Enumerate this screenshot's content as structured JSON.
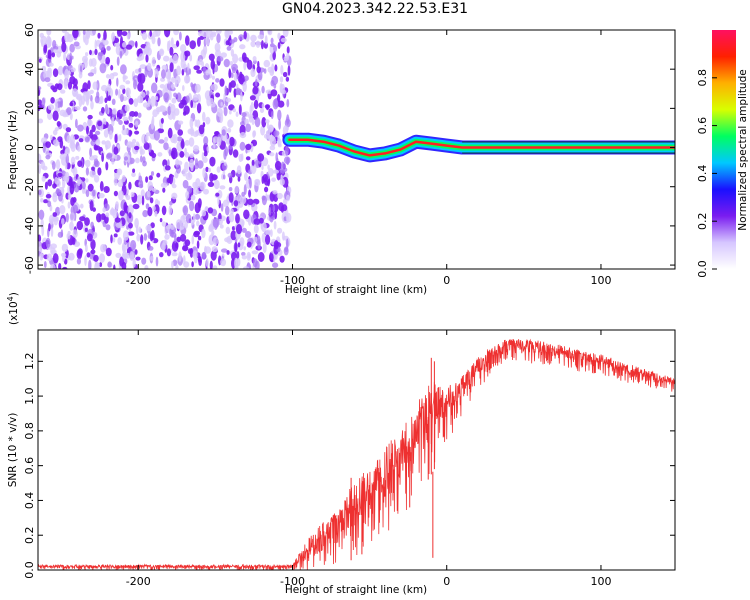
{
  "title": "GN04.2023.342.22.53.E31",
  "chart_data": [
    {
      "type": "heatmap",
      "xlabel": "Height of straight line (km)",
      "ylabel": "Frequency (Hz)",
      "xlim": [
        -265,
        148
      ],
      "ylim": [
        -62,
        60
      ],
      "xticks": [
        -200,
        -100,
        0,
        100
      ],
      "yticks": [
        -60,
        -40,
        -20,
        0,
        20,
        40,
        60
      ],
      "colorbar": {
        "label": "Normalized spectral amplitude",
        "range": [
          0,
          1
        ],
        "ticks": [
          "0.0",
          "0.2",
          "0.4",
          "0.6",
          "0.8"
        ],
        "colors": [
          "#ffffff",
          "#d6c6ff",
          "#7a1cf0",
          "#1a10ff",
          "#00c8ff",
          "#00ff60",
          "#d8ff00",
          "#ffb000",
          "#ff2000",
          "#ff1060"
        ]
      },
      "noise_region_x": [
        -265,
        -102
      ],
      "signal_track": [
        {
          "x": -102,
          "y": 4
        },
        {
          "x": -90,
          "y": 4
        },
        {
          "x": -80,
          "y": 3
        },
        {
          "x": -70,
          "y": 1
        },
        {
          "x": -60,
          "y": -2
        },
        {
          "x": -50,
          "y": -4
        },
        {
          "x": -40,
          "y": -3
        },
        {
          "x": -30,
          "y": -1
        },
        {
          "x": -20,
          "y": 3
        },
        {
          "x": -10,
          "y": 2
        },
        {
          "x": 0,
          "y": 1
        },
        {
          "x": 10,
          "y": 0
        },
        {
          "x": 148,
          "y": 0
        }
      ]
    },
    {
      "type": "line",
      "xlabel": "Height of straight line (km)",
      "ylabel": "SNR (10 * v/v)",
      "yscale_label": "(x10",
      "yscale_exp": "4",
      "yscale_close": ")",
      "xlim": [
        -265,
        148
      ],
      "ylim": [
        0,
        1.38
      ],
      "xticks": [
        -200,
        -100,
        0,
        100
      ],
      "yticks": [
        "0.0",
        "0.2",
        "0.4",
        "0.6",
        "0.8",
        "1.0",
        "1.2"
      ],
      "color": "#ee3030",
      "envelope": [
        {
          "x": -265,
          "lo": 0.0,
          "hi": 0.03
        },
        {
          "x": -100,
          "lo": 0.0,
          "hi": 0.03
        },
        {
          "x": -90,
          "lo": 0.0,
          "hi": 0.18
        },
        {
          "x": -80,
          "lo": 0.02,
          "hi": 0.28
        },
        {
          "x": -70,
          "lo": 0.04,
          "hi": 0.35
        },
        {
          "x": -60,
          "lo": 0.06,
          "hi": 0.52
        },
        {
          "x": -50,
          "lo": 0.12,
          "hi": 0.6
        },
        {
          "x": -40,
          "lo": 0.2,
          "hi": 0.7
        },
        {
          "x": -30,
          "lo": 0.3,
          "hi": 0.82
        },
        {
          "x": -20,
          "lo": 0.4,
          "hi": 0.95
        },
        {
          "x": -10,
          "lo": 0.55,
          "hi": 1.1
        },
        {
          "x": 0,
          "lo": 0.7,
          "hi": 1.05
        },
        {
          "x": 10,
          "lo": 0.88,
          "hi": 1.12
        },
        {
          "x": 20,
          "lo": 1.02,
          "hi": 1.22
        },
        {
          "x": 30,
          "lo": 1.15,
          "hi": 1.3
        },
        {
          "x": 40,
          "lo": 1.2,
          "hi": 1.33
        },
        {
          "x": 60,
          "lo": 1.18,
          "hi": 1.32
        },
        {
          "x": 80,
          "lo": 1.15,
          "hi": 1.28
        },
        {
          "x": 100,
          "lo": 1.12,
          "hi": 1.24
        },
        {
          "x": 120,
          "lo": 1.07,
          "hi": 1.18
        },
        {
          "x": 148,
          "lo": 1.02,
          "hi": 1.1
        }
      ],
      "spikes": [
        {
          "x": -62,
          "y": 0.53
        },
        {
          "x": -55,
          "y": 0.5
        },
        {
          "x": -24,
          "y": 0.65
        },
        {
          "x": -12,
          "y": 0.88
        },
        {
          "x": -10,
          "y": 1.22
        },
        {
          "x": -9,
          "y": 0.07
        },
        {
          "x": -8,
          "y": 1.2
        }
      ]
    }
  ]
}
